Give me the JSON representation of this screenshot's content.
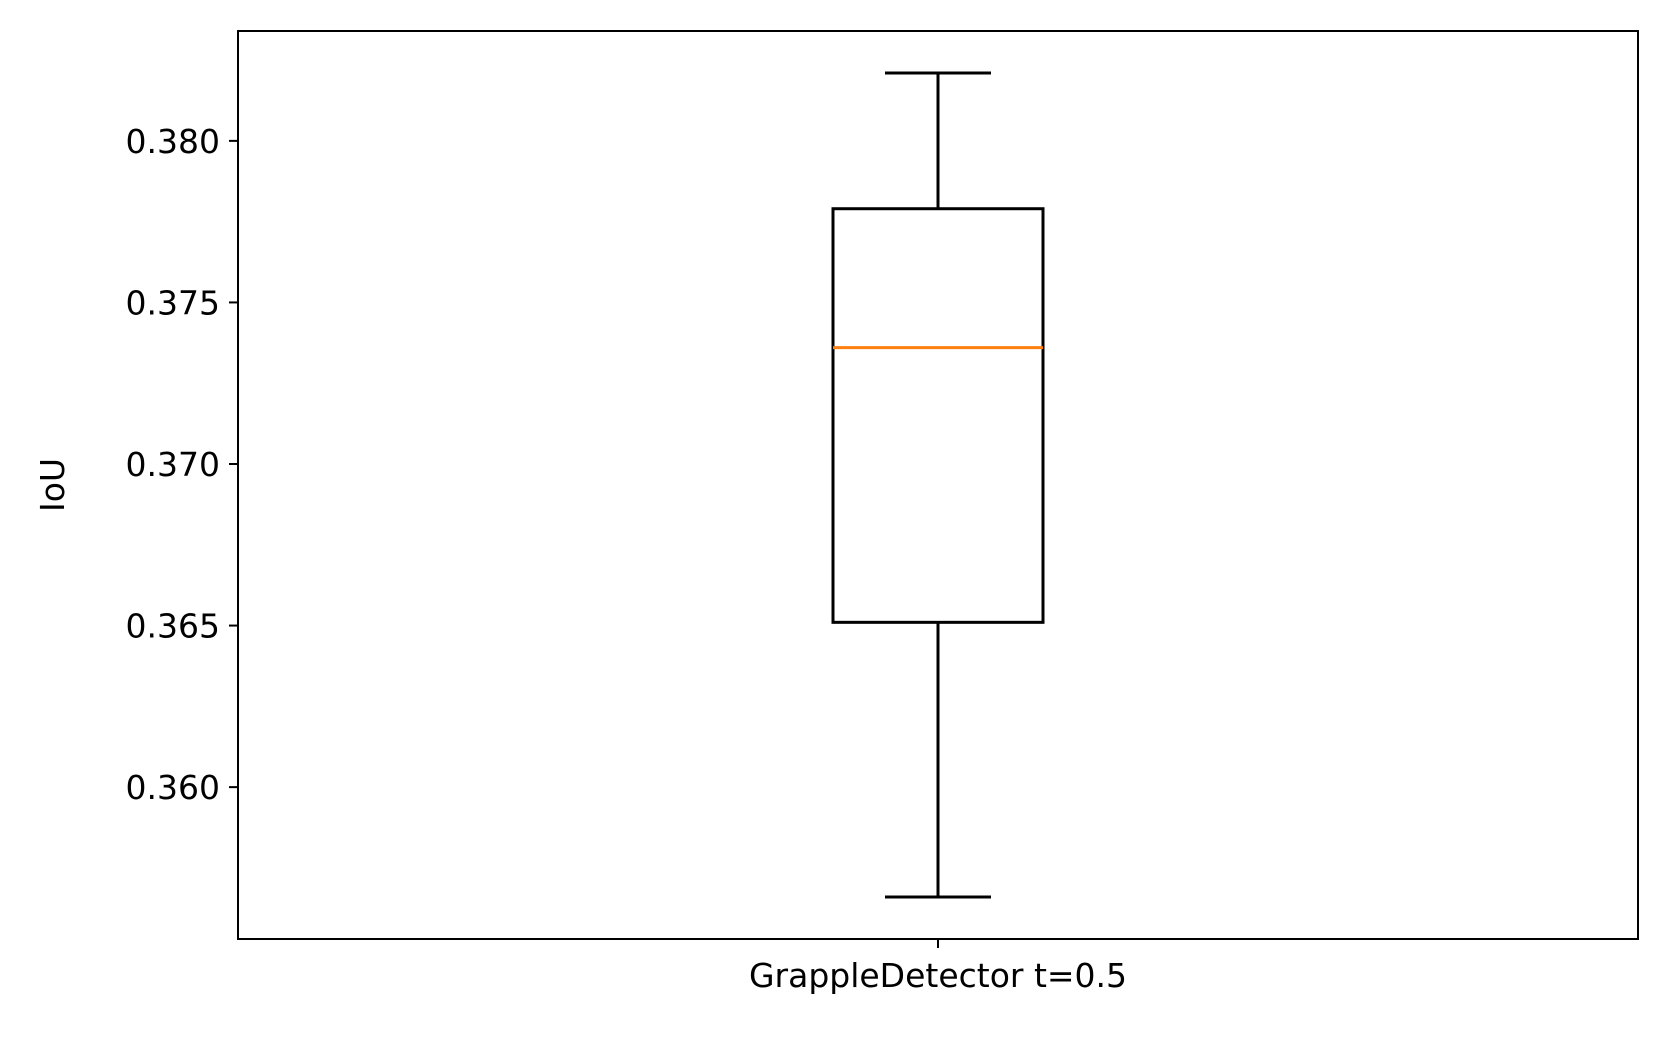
{
  "chart_data": {
    "type": "box",
    "ylabel": "IoU",
    "xlabel": "",
    "categories": [
      "GrappleDetector t=0.5"
    ],
    "boxes": [
      {
        "name": "GrappleDetector t=0.5",
        "whisker_low": 0.3566,
        "q1": 0.3651,
        "median": 0.3736,
        "q3": 0.3779,
        "whisker_high": 0.3821
      }
    ],
    "ylim": [
      0.3553,
      0.3834
    ],
    "yticks": [
      0.36,
      0.365,
      0.37,
      0.375,
      0.38
    ],
    "ytick_labels": [
      "0.360",
      "0.365",
      "0.370",
      "0.375",
      "0.380"
    ],
    "grid": false,
    "colors": {
      "box": "#000000",
      "median": "#ff7f0e"
    }
  }
}
